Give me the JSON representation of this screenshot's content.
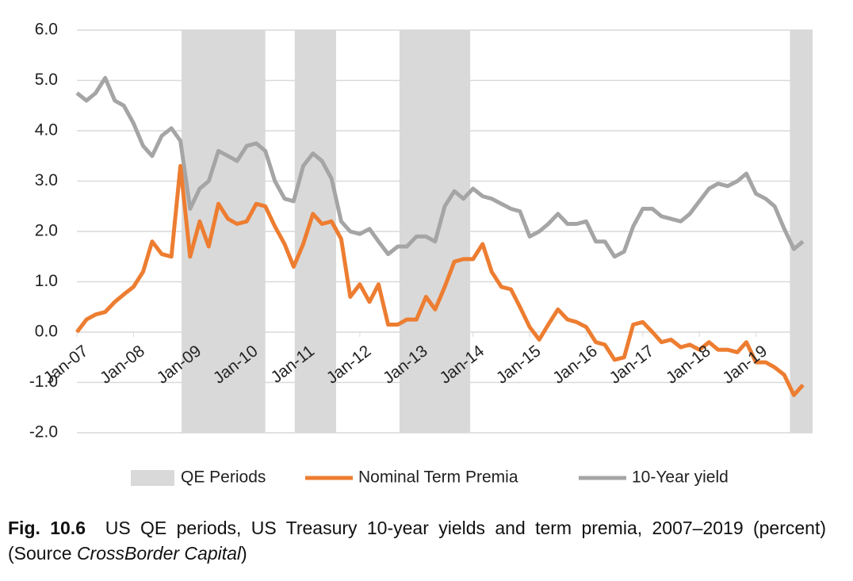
{
  "chart_data": {
    "type": "line",
    "x": [
      2007,
      2007.17,
      2007.33,
      2007.5,
      2007.67,
      2007.83,
      2008,
      2008.17,
      2008.33,
      2008.5,
      2008.67,
      2008.83,
      2009,
      2009.17,
      2009.33,
      2009.5,
      2009.67,
      2009.83,
      2010,
      2010.17,
      2010.33,
      2010.5,
      2010.67,
      2010.83,
      2011,
      2011.17,
      2011.33,
      2011.5,
      2011.67,
      2011.83,
      2012,
      2012.17,
      2012.33,
      2012.5,
      2012.67,
      2012.83,
      2013,
      2013.17,
      2013.33,
      2013.5,
      2013.67,
      2013.83,
      2014,
      2014.17,
      2014.33,
      2014.5,
      2014.67,
      2014.83,
      2015,
      2015.17,
      2015.33,
      2015.5,
      2015.67,
      2015.83,
      2016,
      2016.17,
      2016.33,
      2016.5,
      2016.67,
      2016.83,
      2017,
      2017.17,
      2017.33,
      2017.5,
      2017.67,
      2017.83,
      2018,
      2018.17,
      2018.33,
      2018.5,
      2018.67,
      2018.83,
      2019,
      2019.17,
      2019.33,
      2019.5,
      2019.67,
      2019.83
    ],
    "series": [
      {
        "name": "Nominal Term Premia",
        "color": "#ed7d31",
        "values": [
          0,
          0.25,
          0.35,
          0.4,
          0.6,
          0.75,
          0.9,
          1.2,
          1.8,
          1.55,
          1.5,
          3.3,
          1.5,
          2.2,
          1.7,
          2.55,
          2.25,
          2.15,
          2.2,
          2.55,
          2.5,
          2.1,
          1.75,
          1.3,
          1.75,
          2.35,
          2.15,
          2.2,
          1.85,
          0.7,
          0.95,
          0.6,
          0.95,
          0.15,
          0.15,
          0.25,
          0.25,
          0.7,
          0.45,
          0.9,
          1.4,
          1.45,
          1.45,
          1.75,
          1.2,
          0.9,
          0.85,
          0.5,
          0.1,
          -0.15,
          0.15,
          0.45,
          0.25,
          0.2,
          0.1,
          -0.2,
          -0.25,
          -0.55,
          -0.5,
          0.15,
          0.2,
          0,
          -0.2,
          -0.15,
          -0.3,
          -0.25,
          -0.35,
          -0.2,
          -0.35,
          -0.35,
          -0.4,
          -0.2,
          -0.6,
          -0.6,
          -0.7,
          -0.85,
          -1.25,
          -1.05
        ]
      },
      {
        "name": "10-Year yield",
        "color": "#a5a5a5",
        "values": [
          4.75,
          4.6,
          4.75,
          5.05,
          4.6,
          4.5,
          4.15,
          3.7,
          3.5,
          3.9,
          4.05,
          3.8,
          2.45,
          2.85,
          3.0,
          3.6,
          3.5,
          3.4,
          3.7,
          3.75,
          3.6,
          3.0,
          2.65,
          2.6,
          3.3,
          3.55,
          3.4,
          3.05,
          2.2,
          2.0,
          1.95,
          2.05,
          1.8,
          1.55,
          1.7,
          1.7,
          1.9,
          1.9,
          1.8,
          2.5,
          2.8,
          2.65,
          2.85,
          2.7,
          2.65,
          2.55,
          2.45,
          2.4,
          1.9,
          2.0,
          2.15,
          2.35,
          2.15,
          2.15,
          2.2,
          1.8,
          1.8,
          1.5,
          1.6,
          2.1,
          2.45,
          2.45,
          2.3,
          2.25,
          2.2,
          2.35,
          2.6,
          2.85,
          2.95,
          2.9,
          3.0,
          3.15,
          2.75,
          2.65,
          2.5,
          2.05,
          1.65,
          1.8
        ]
      }
    ],
    "qe_periods": {
      "name": "QE Periods",
      "color": "#d9d9d9",
      "ranges": [
        [
          2008.85,
          2010.33
        ],
        [
          2010.85,
          2011.58
        ],
        [
          2012.7,
          2013.95
        ],
        [
          2019.6,
          2020
        ]
      ]
    },
    "xlim": [
      2007,
      2020
    ],
    "xticks": [
      {
        "value": 2007,
        "label": "Jan-07"
      },
      {
        "value": 2008,
        "label": "Jan-08"
      },
      {
        "value": 2009,
        "label": "Jan-09"
      },
      {
        "value": 2010,
        "label": "Jan-10"
      },
      {
        "value": 2011,
        "label": "Jan-11"
      },
      {
        "value": 2012,
        "label": "Jan-12"
      },
      {
        "value": 2013,
        "label": "Jan-13"
      },
      {
        "value": 2014,
        "label": "Jan-14"
      },
      {
        "value": 2015,
        "label": "Jan-15"
      },
      {
        "value": 2016,
        "label": "Jan-16"
      },
      {
        "value": 2017,
        "label": "Jan-17"
      },
      {
        "value": 2018,
        "label": "Jan-18"
      },
      {
        "value": 2019,
        "label": "Jan-19"
      }
    ],
    "ylim": [
      -2,
      6
    ],
    "yticks": [
      {
        "value": 6,
        "label": "6.0"
      },
      {
        "value": 5,
        "label": "5.0"
      },
      {
        "value": 4,
        "label": "4.0"
      },
      {
        "value": 3,
        "label": "3.0"
      },
      {
        "value": 2,
        "label": "2.0"
      },
      {
        "value": 1,
        "label": "1.0"
      },
      {
        "value": 0,
        "label": "0.0"
      },
      {
        "value": -1,
        "label": "-1.0"
      },
      {
        "value": -2,
        "label": "-2.0"
      }
    ],
    "grid": true,
    "legend": "bottom"
  },
  "caption": {
    "label": "Fig. 10.6",
    "text": "US QE periods, US Treasury 10-year yields and term premia, 2007–2019 (percent) (Source ",
    "source": "CrossBorder Capital",
    "end": ")"
  }
}
